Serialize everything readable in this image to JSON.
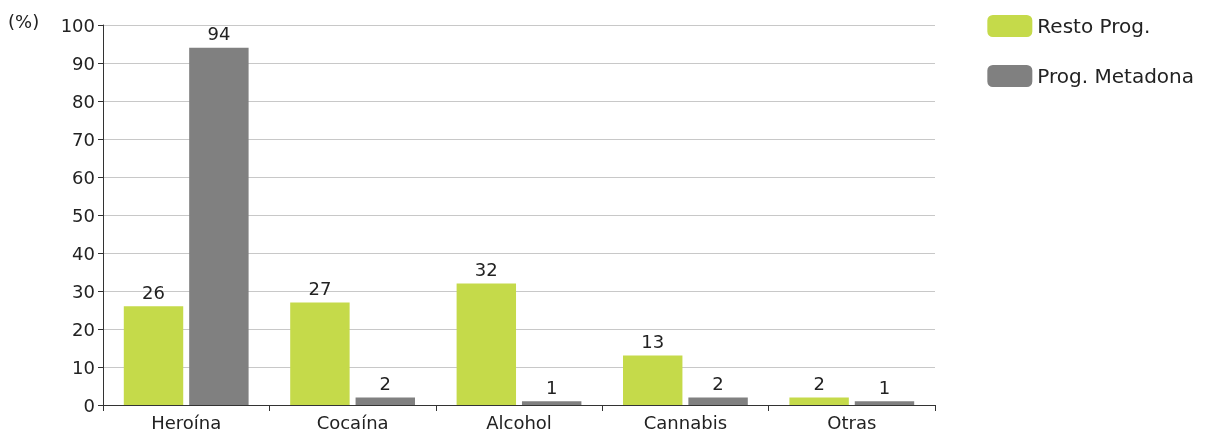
{
  "chart_data": {
    "type": "bar",
    "ylabel": "(%)",
    "categories": [
      "Heroína",
      "Cocaína",
      "Alcohol",
      "Cannabis",
      "Otras"
    ],
    "series": [
      {
        "name": "Resto Prog.",
        "color": "#c5da4a",
        "values": [
          26,
          27,
          32,
          13,
          2
        ]
      },
      {
        "name": "Prog. Metadona",
        "color": "#808080",
        "values": [
          94,
          2,
          1,
          2,
          1
        ]
      }
    ],
    "ylim": [
      0,
      100
    ],
    "yticks": [
      0,
      10,
      20,
      30,
      40,
      50,
      60,
      70,
      80,
      90,
      100
    ],
    "grid": "y",
    "legend": "top right",
    "data_labels": true
  }
}
